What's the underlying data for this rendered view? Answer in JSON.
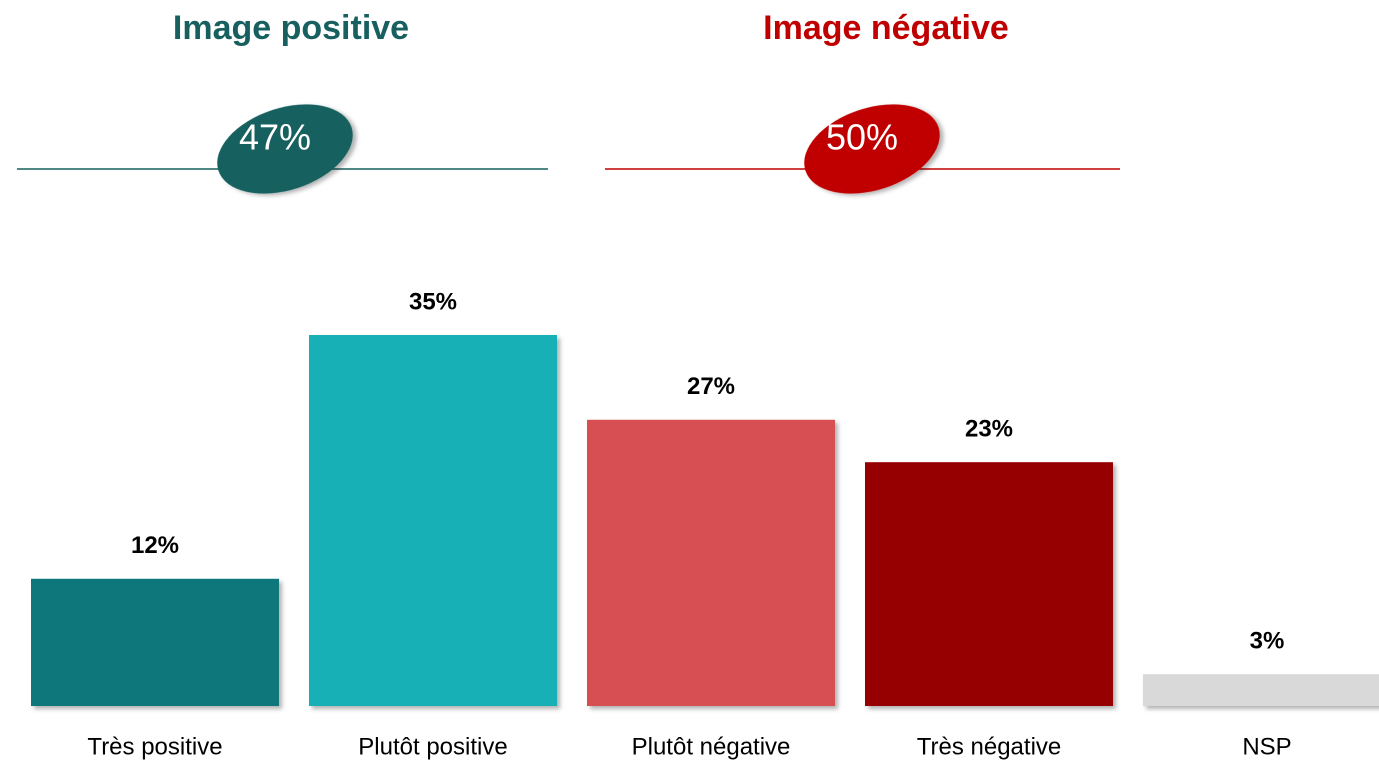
{
  "chart_data": {
    "type": "bar",
    "categories": [
      "Très positive",
      "Plutôt positive",
      "Plutôt négative",
      "Très négative",
      "NSP"
    ],
    "values": [
      12,
      35,
      27,
      23,
      3
    ],
    "value_labels": [
      "12%",
      "35%",
      "27%",
      "23%",
      "3%"
    ],
    "colors": [
      "#10777b",
      "#14b0b6",
      "#d84f52",
      "#960000",
      "#d9d9d9"
    ],
    "groups": [
      {
        "title": "Image positive",
        "value": 47,
        "value_label": "47%",
        "color": "#17605f"
      },
      {
        "title": "Image négative",
        "value": 50,
        "value_label": "50%",
        "color": "#c00000"
      }
    ]
  }
}
